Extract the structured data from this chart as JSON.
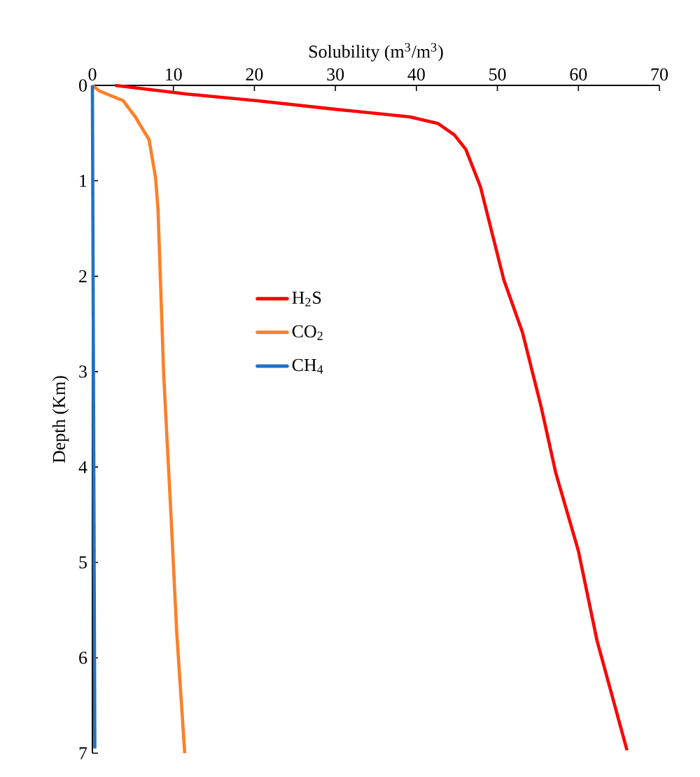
{
  "chart_data": {
    "type": "line",
    "xlabel": "Solubility (m$^{3}$/m$^{3}$)",
    "ylabel": "Depth (Km)",
    "xlim": [
      0,
      70
    ],
    "xticks": [
      0,
      10,
      20,
      30,
      40,
      50,
      60,
      70
    ],
    "ylim": [
      7,
      0
    ],
    "yticks": [
      0,
      1,
      2,
      3,
      4,
      5,
      6,
      7
    ],
    "legend": "left",
    "marker": "none",
    "line_style": "solid",
    "series": [
      {
        "name": "H$_{2}$S",
        "color": "#ff0000",
        "x": [
          2.8,
          11.6,
          20.2,
          30,
          39.2,
          42.7,
          44.7,
          46.1,
          47.9,
          50.8,
          53.1,
          55.4,
          57.2,
          60,
          62.3,
          66
        ],
        "values": [
          0,
          0.09,
          0.16,
          0.25,
          0.33,
          0.4,
          0.52,
          0.67,
          1.06,
          2.04,
          2.59,
          3.37,
          4.06,
          4.88,
          5.82,
          6.97
        ]
      },
      {
        "name": "CO$_{2}$",
        "color": "#ff7f27",
        "x": [
          0,
          0.9,
          3.8,
          5.3,
          7,
          7.8,
          8.1,
          8.8,
          9.7,
          10.4,
          11.4
        ],
        "values": [
          0,
          0.06,
          0.16,
          0.33,
          0.57,
          0.97,
          1.3,
          3.03,
          4.5,
          5.72,
          7.0
        ]
      },
      {
        "name": "CH$_{4}$",
        "color": "#1f72c8",
        "x": [
          0,
          0.3
        ],
        "values": [
          0,
          6.95
        ]
      }
    ]
  }
}
